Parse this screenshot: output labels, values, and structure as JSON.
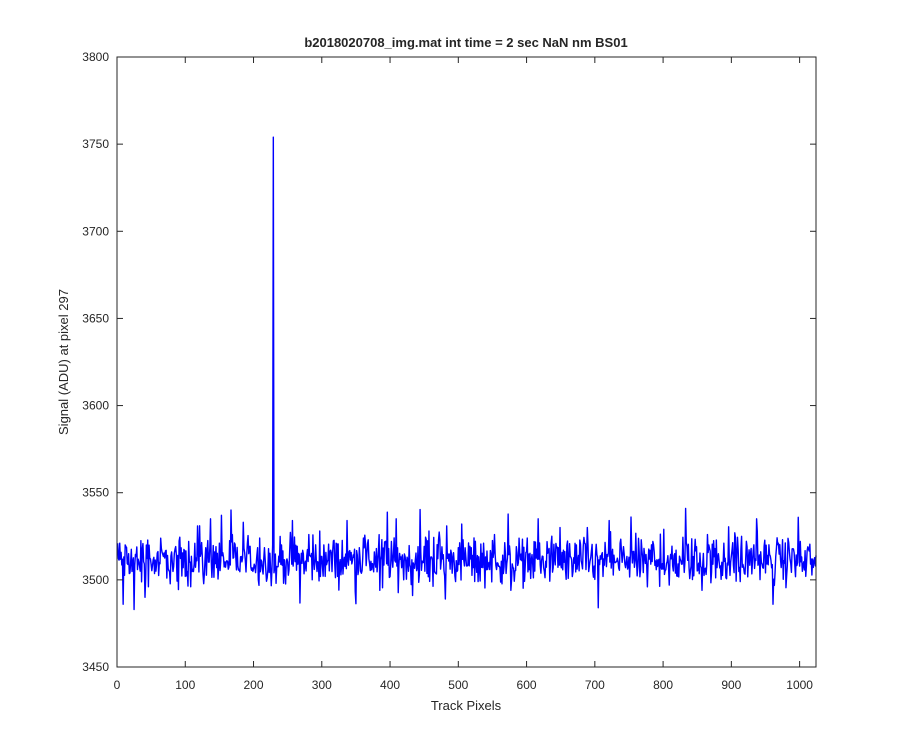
{
  "chart_data": {
    "type": "line",
    "title": "b2018020708_img.mat int time = 2 sec  NaN nm BS01",
    "xlabel": "Track Pixels",
    "ylabel": "Signal (ADU) at pixel 297",
    "xlim": [
      0,
      1024
    ],
    "ylim": [
      3450,
      3800
    ],
    "xticks": [
      0,
      100,
      200,
      300,
      400,
      500,
      600,
      700,
      800,
      900,
      1000
    ],
    "yticks": [
      3450,
      3500,
      3550,
      3600,
      3650,
      3700,
      3750,
      3800
    ],
    "grid": false,
    "legend": "none",
    "series": [
      {
        "color": "#0000ff",
        "n_points": 1024,
        "baseline": 3511,
        "noise_range": [
          3484,
          3541
        ],
        "x": [
          1,
          9,
          17,
          25,
          33,
          41,
          49,
          57,
          65,
          73,
          81,
          89,
          97,
          105,
          113,
          121,
          129,
          137,
          145,
          153,
          161,
          169,
          177,
          185,
          193,
          201,
          209,
          217,
          225,
          229,
          233,
          241,
          249,
          257,
          265,
          273,
          281,
          289,
          297,
          305,
          313,
          321,
          329,
          337,
          345,
          353,
          361,
          369,
          377,
          385,
          393,
          401,
          409,
          417,
          425,
          433,
          441,
          449,
          457,
          465,
          473,
          481,
          489,
          497,
          505,
          513,
          521,
          529,
          537,
          545,
          553,
          561,
          569,
          577,
          585,
          593,
          601,
          609,
          617,
          625,
          633,
          641,
          649,
          657,
          665,
          673,
          681,
          689,
          697,
          705,
          713,
          721,
          729,
          737,
          745,
          753,
          761,
          769,
          777,
          785,
          793,
          801,
          809,
          817,
          825,
          833,
          841,
          849,
          857,
          865,
          873,
          881,
          889,
          897,
          905,
          913,
          921,
          929,
          937,
          945,
          953,
          961,
          969,
          977,
          985,
          993,
          1001,
          1009,
          1017,
          1024
        ],
        "y": [
          3521,
          3486,
          3515,
          3483,
          3508,
          3490,
          3512,
          3505,
          3518,
          3501,
          3510,
          3514,
          3507,
          3522,
          3509,
          3531,
          3512,
          3535,
          3519,
          3537,
          3511,
          3526,
          3508,
          3533,
          3515,
          3509,
          3524,
          3512,
          3506,
          3754,
          3498,
          3520,
          3512,
          3534,
          3509,
          3515,
          3526,
          3506,
          3528,
          3502,
          3517,
          3521,
          3508,
          3534,
          3511,
          3503,
          3524,
          3512,
          3516,
          3494,
          3522,
          3509,
          3535,
          3507,
          3513,
          3491,
          3519,
          3510,
          3528,
          3505,
          3523,
          3489,
          3517,
          3511,
          3532,
          3508,
          3514,
          3499,
          3521,
          3510,
          3526,
          3507,
          3515,
          3494,
          3519,
          3511,
          3524,
          3509,
          3535,
          3507,
          3518,
          3512,
          3530,
          3506,
          3513,
          3520,
          3509,
          3530,
          3505,
          3484,
          3512,
          3534,
          3510,
          3521,
          3507,
          3536,
          3512,
          3517,
          3496,
          3522,
          3511,
          3529,
          3497,
          3515,
          3512,
          3541,
          3508,
          3519,
          3494,
          3526,
          3509,
          3515,
          3521,
          3511,
          3527,
          3499,
          3512,
          3518,
          3535,
          3509,
          3514,
          3486,
          3521,
          3511,
          3516,
          3508,
          3522,
          3502,
          3512,
          3514
        ]
      }
    ]
  }
}
